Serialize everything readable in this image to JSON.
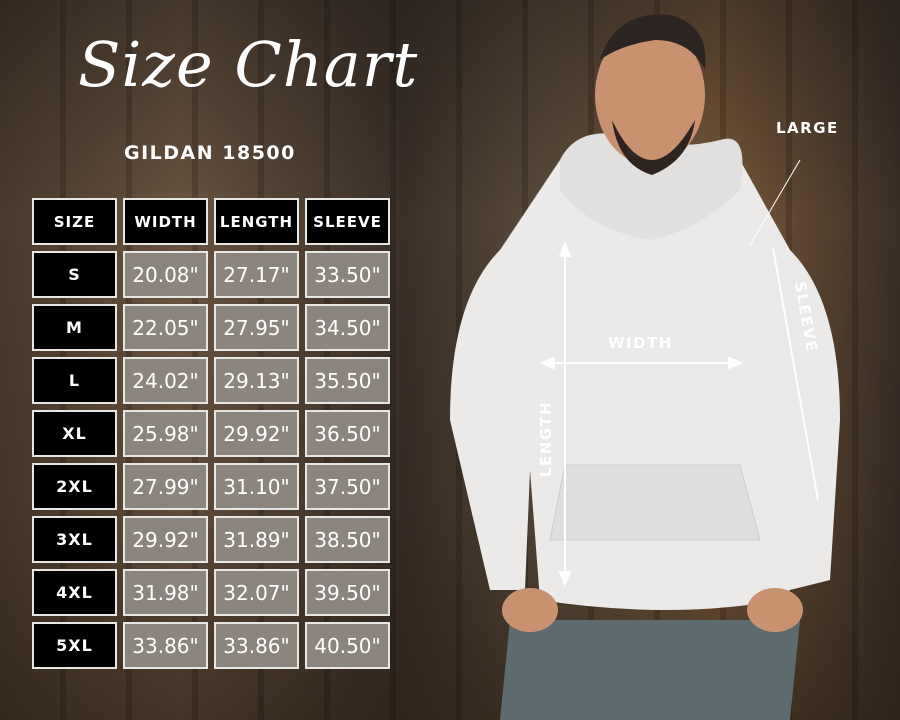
{
  "title": "Size Chart",
  "subtitle": "GILDAN 18500",
  "table": {
    "headers": [
      "SIZE",
      "WIDTH",
      "LENGTH",
      "SLEEVE"
    ],
    "rows": [
      [
        "S",
        "20.08\"",
        "27.17\"",
        "33.50\""
      ],
      [
        "M",
        "22.05\"",
        "27.95\"",
        "34.50\""
      ],
      [
        "L",
        "24.02\"",
        "29.13\"",
        "35.50\""
      ],
      [
        "XL",
        "25.98\"",
        "29.92\"",
        "36.50\""
      ],
      [
        "2XL",
        "27.99\"",
        "31.10\"",
        "37.50\""
      ],
      [
        "3XL",
        "29.92\"",
        "31.89\"",
        "38.50\""
      ],
      [
        "4XL",
        "31.98\"",
        "32.07\"",
        "39.50\""
      ],
      [
        "5XL",
        "33.86\"",
        "33.86\"",
        "40.50\""
      ]
    ]
  },
  "model": {
    "shown_size": "LARGE",
    "width_label": "WIDTH",
    "length_label": "LENGTH",
    "sleeve_label": "SLEEVE"
  },
  "colors": {
    "header_bg": "#000000",
    "value_bg": "#8c857e",
    "text": "#ffffff"
  }
}
